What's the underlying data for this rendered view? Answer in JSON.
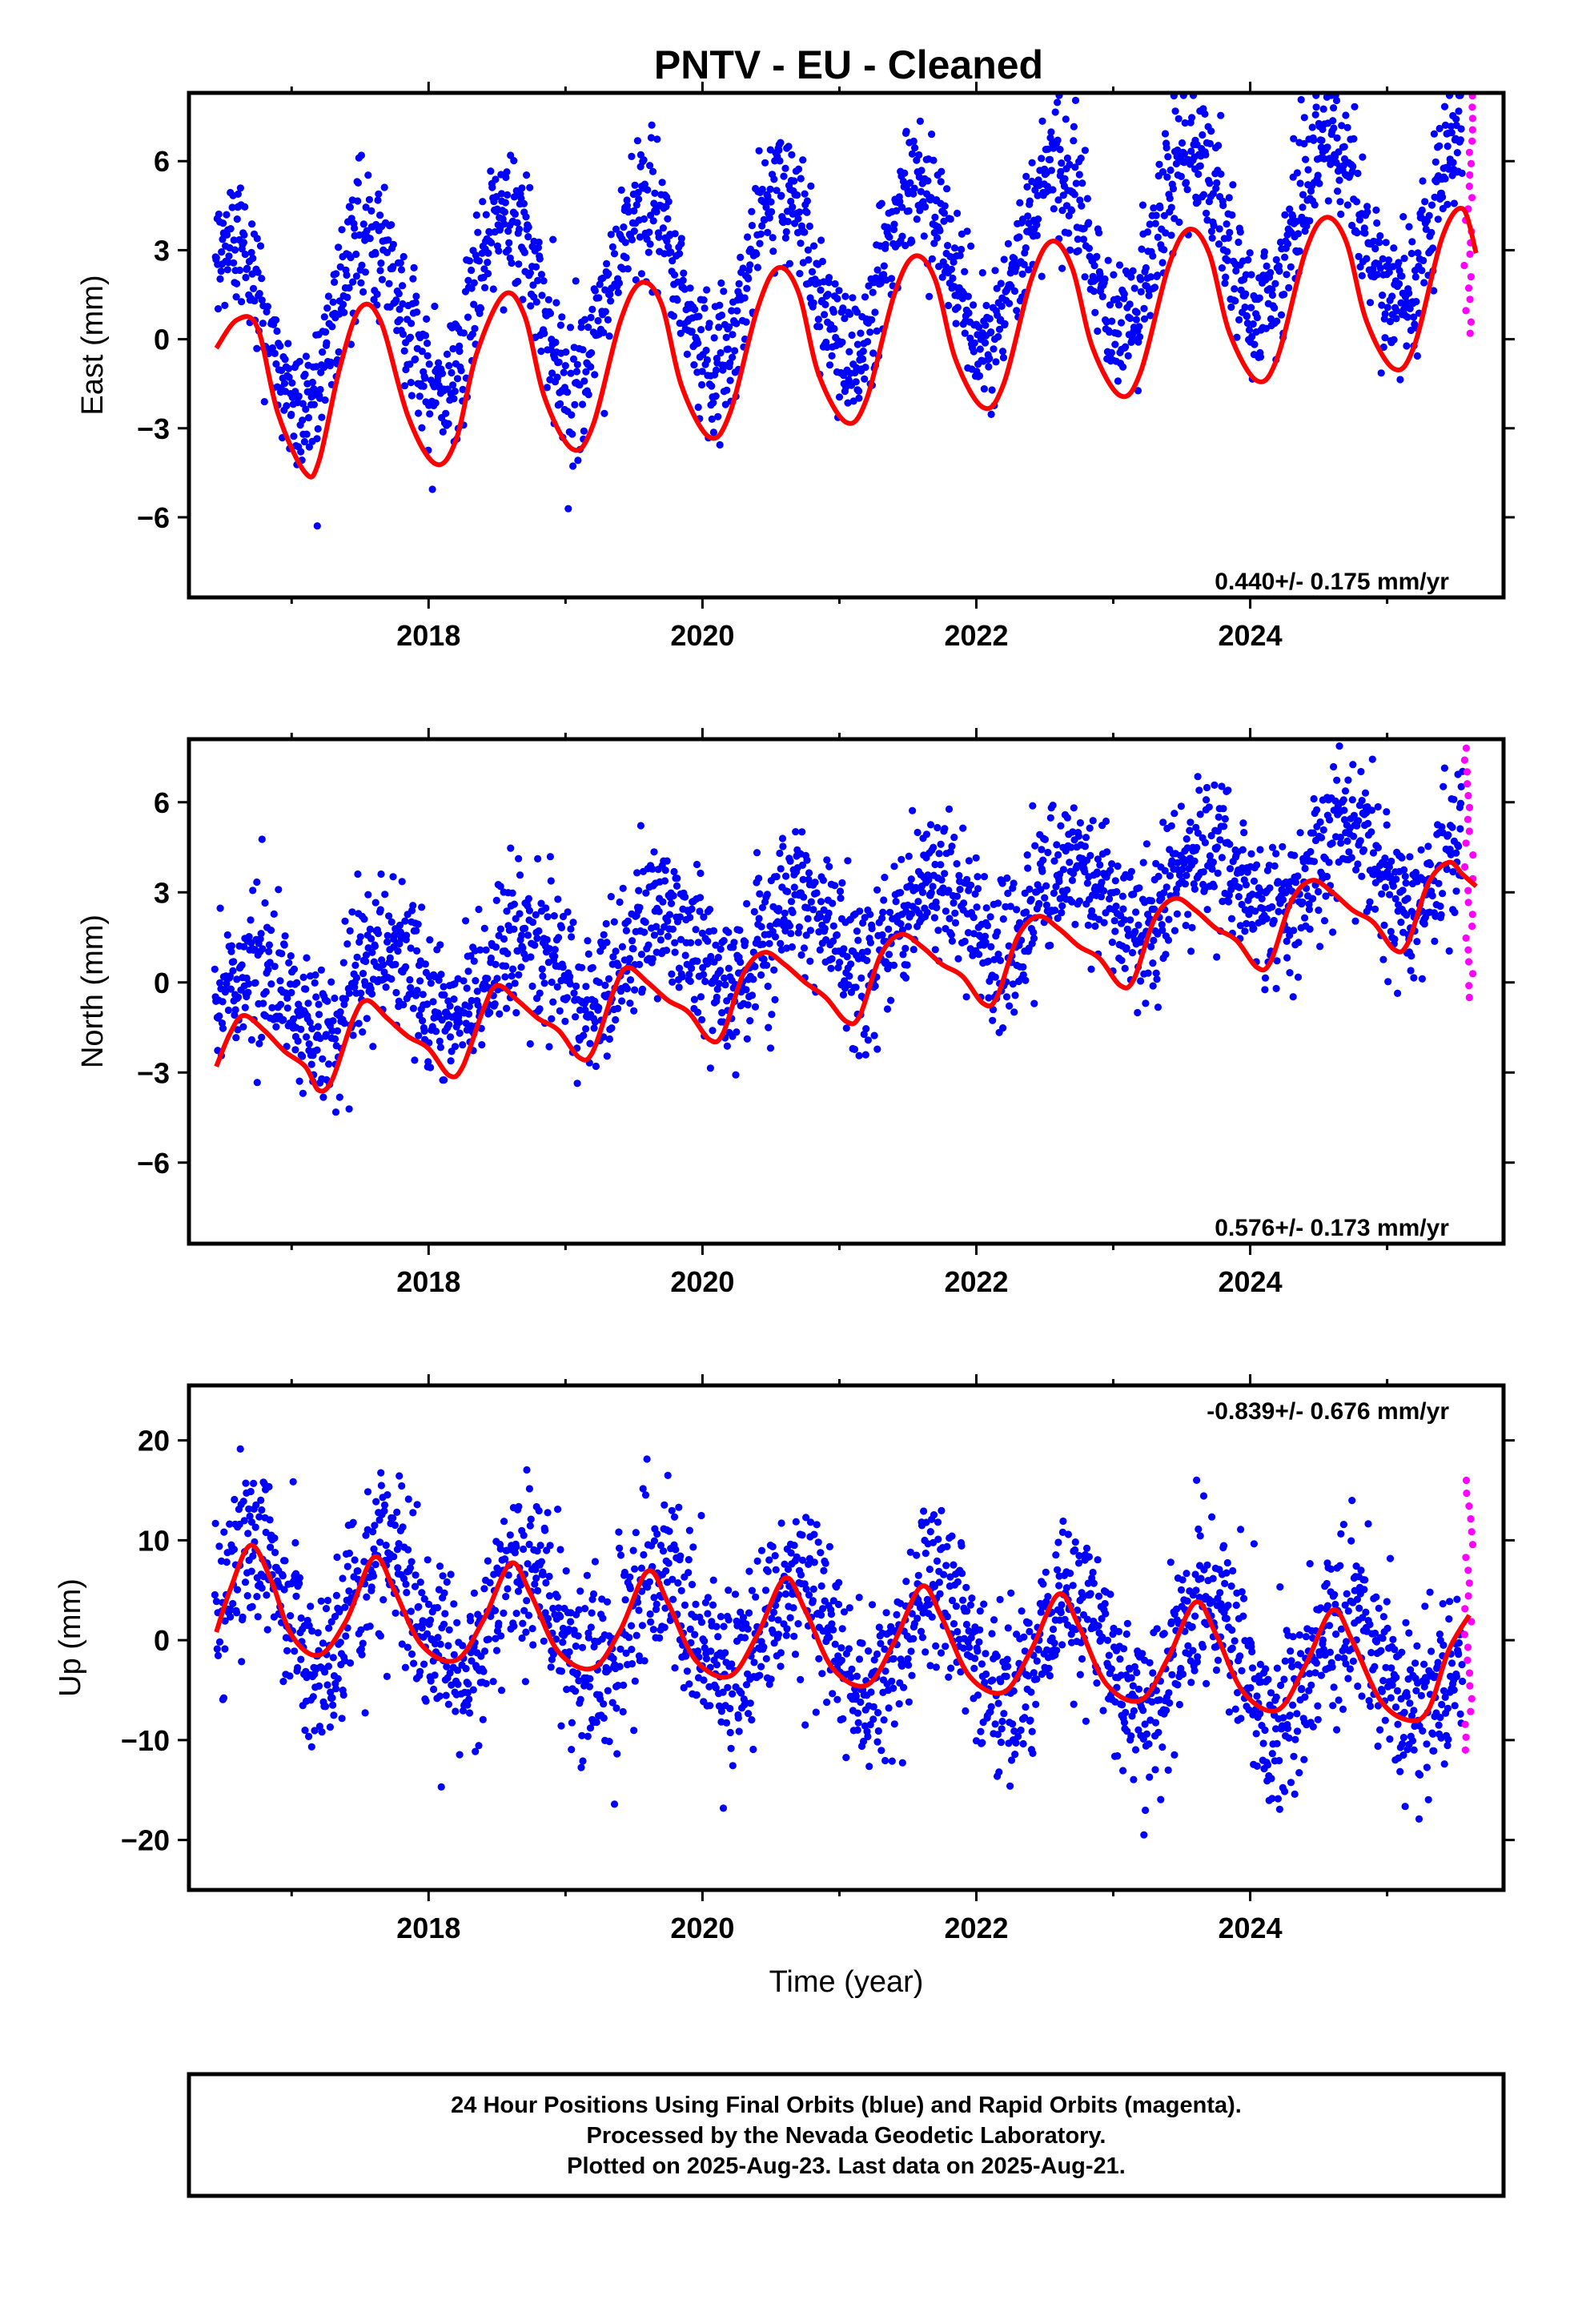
{
  "title": "PNTV  - EU - Cleaned",
  "x_axis_label": "Time (year)",
  "footer": {
    "line1": "24 Hour Positions Using Final Orbits (blue) and Rapid Orbits (magenta).",
    "line2": "Processed by the Nevada Geodetic Laboratory.",
    "line3": "Plotted on 2025-Aug-23. Last data on 2025-Aug-21."
  },
  "colors": {
    "final_orbits": "#0000ff",
    "rapid_orbits": "#ff00ff",
    "model_fit": "#ff0000",
    "frame": "#000000"
  },
  "chart_data": [
    {
      "type": "scatter",
      "component": "east",
      "ylabel": "East (mm)",
      "xlim": [
        2016.25,
        2025.85
      ],
      "ylim": [
        -8.7,
        8.3
      ],
      "x_ticks": [
        2018,
        2020,
        2022,
        2024
      ],
      "x_tick_labels": [
        "2018",
        "2020",
        "2022",
        "2024"
      ],
      "y_ticks": [
        -6,
        -3,
        0,
        3,
        6
      ],
      "y_tick_labels": [
        "−6",
        "−3",
        "0",
        "3",
        "6"
      ],
      "rate_label": "0.440+/- 0.175 mm/yr",
      "rate_label_position": "bottom-right",
      "series": [
        {
          "name": "Final Orbits",
          "color": "#0000ff",
          "kind": "points",
          "x_range": [
            2016.44,
            2025.55
          ],
          "trend_mm_per_yr": 0.44,
          "trend_intercept": 0.35,
          "annual_amplitude": 2.9,
          "annual_phase": 0.32,
          "scatter_sd": 1.15
        },
        {
          "name": "Rapid Orbits",
          "color": "#ff00ff",
          "kind": "points",
          "x_range": [
            2025.56,
            2025.63
          ],
          "y_range": [
            0.2,
            8.2
          ]
        },
        {
          "name": "Model fit",
          "color": "#ff0000",
          "kind": "line",
          "points": [
            [
              2016.45,
              -0.3
            ],
            [
              2016.6,
              0.65
            ],
            [
              2016.75,
              0.4
            ],
            [
              2016.9,
              -2.5
            ],
            [
              2017.1,
              -4.5
            ],
            [
              2017.2,
              -4.1
            ],
            [
              2017.35,
              -1.0
            ],
            [
              2017.5,
              1.05
            ],
            [
              2017.65,
              0.6
            ],
            [
              2017.85,
              -2.6
            ],
            [
              2018.05,
              -4.2
            ],
            [
              2018.2,
              -3.4
            ],
            [
              2018.35,
              -0.5
            ],
            [
              2018.55,
              1.5
            ],
            [
              2018.7,
              0.8
            ],
            [
              2018.85,
              -2.0
            ],
            [
              2019.05,
              -3.7
            ],
            [
              2019.2,
              -2.9
            ],
            [
              2019.4,
              0.6
            ],
            [
              2019.55,
              1.9
            ],
            [
              2019.7,
              1.2
            ],
            [
              2019.85,
              -1.6
            ],
            [
              2020.05,
              -3.3
            ],
            [
              2020.2,
              -2.5
            ],
            [
              2020.4,
              1.0
            ],
            [
              2020.55,
              2.4
            ],
            [
              2020.7,
              1.6
            ],
            [
              2020.85,
              -1.2
            ],
            [
              2021.05,
              -2.8
            ],
            [
              2021.2,
              -2.0
            ],
            [
              2021.4,
              1.5
            ],
            [
              2021.55,
              2.8
            ],
            [
              2021.7,
              2.0
            ],
            [
              2021.85,
              -0.7
            ],
            [
              2022.05,
              -2.3
            ],
            [
              2022.2,
              -1.5
            ],
            [
              2022.4,
              2.0
            ],
            [
              2022.55,
              3.3
            ],
            [
              2022.7,
              2.4
            ],
            [
              2022.85,
              -0.3
            ],
            [
              2023.05,
              -1.9
            ],
            [
              2023.2,
              -1.1
            ],
            [
              2023.4,
              2.4
            ],
            [
              2023.55,
              3.7
            ],
            [
              2023.7,
              2.9
            ],
            [
              2023.85,
              0.2
            ],
            [
              2024.05,
              -1.4
            ],
            [
              2024.2,
              -0.6
            ],
            [
              2024.4,
              2.9
            ],
            [
              2024.55,
              4.1
            ],
            [
              2024.7,
              3.3
            ],
            [
              2024.85,
              0.6
            ],
            [
              2025.05,
              -1.0
            ],
            [
              2025.2,
              -0.2
            ],
            [
              2025.4,
              3.4
            ],
            [
              2025.55,
              4.4
            ],
            [
              2025.65,
              2.9
            ]
          ]
        }
      ]
    },
    {
      "type": "scatter",
      "component": "north",
      "ylabel": "North (mm)",
      "xlim": [
        2016.25,
        2025.85
      ],
      "ylim": [
        -8.7,
        8.1
      ],
      "x_ticks": [
        2018,
        2020,
        2022,
        2024
      ],
      "x_tick_labels": [
        "2018",
        "2020",
        "2022",
        "2024"
      ],
      "y_ticks": [
        -6,
        -3,
        0,
        3,
        6
      ],
      "y_tick_labels": [
        "−6",
        "−3",
        "0",
        "3",
        "6"
      ],
      "rate_label": "0.576+/- 0.173 mm/yr",
      "rate_label_position": "bottom-right",
      "series": [
        {
          "name": "Final Orbits",
          "color": "#0000ff",
          "kind": "points",
          "x_range": [
            2016.44,
            2025.55
          ],
          "trend_mm_per_yr": 0.576,
          "trend_intercept": -0.9,
          "annual_amplitude": 1.3,
          "annual_phase": 0.45,
          "scatter_sd": 1.2
        },
        {
          "name": "Rapid Orbits",
          "color": "#ff00ff",
          "kind": "points",
          "x_range": [
            2025.56,
            2025.63
          ],
          "y_range": [
            -0.5,
            7.8
          ]
        },
        {
          "name": "Model fit",
          "color": "#ff0000",
          "kind": "line",
          "points": [
            [
              2016.45,
              -2.8
            ],
            [
              2016.55,
              -1.7
            ],
            [
              2016.65,
              -1.1
            ],
            [
              2016.8,
              -1.6
            ],
            [
              2016.95,
              -2.3
            ],
            [
              2017.1,
              -2.8
            ],
            [
              2017.2,
              -3.6
            ],
            [
              2017.3,
              -3.2
            ],
            [
              2017.45,
              -1.2
            ],
            [
              2017.55,
              -0.6
            ],
            [
              2017.7,
              -1.2
            ],
            [
              2017.85,
              -1.8
            ],
            [
              2018.0,
              -2.2
            ],
            [
              2018.15,
              -3.1
            ],
            [
              2018.25,
              -2.8
            ],
            [
              2018.4,
              -0.9
            ],
            [
              2018.5,
              -0.1
            ],
            [
              2018.65,
              -0.6
            ],
            [
              2018.8,
              -1.2
            ],
            [
              2018.95,
              -1.6
            ],
            [
              2019.1,
              -2.5
            ],
            [
              2019.2,
              -2.3
            ],
            [
              2019.35,
              -0.3
            ],
            [
              2019.45,
              0.5
            ],
            [
              2019.6,
              0.0
            ],
            [
              2019.75,
              -0.6
            ],
            [
              2019.9,
              -1.0
            ],
            [
              2020.05,
              -1.9
            ],
            [
              2020.15,
              -1.7
            ],
            [
              2020.3,
              0.3
            ],
            [
              2020.45,
              1.0
            ],
            [
              2020.6,
              0.6
            ],
            [
              2020.75,
              0.0
            ],
            [
              2020.9,
              -0.5
            ],
            [
              2021.05,
              -1.3
            ],
            [
              2021.15,
              -1.1
            ],
            [
              2021.3,
              0.9
            ],
            [
              2021.45,
              1.6
            ],
            [
              2021.6,
              1.2
            ],
            [
              2021.75,
              0.6
            ],
            [
              2021.9,
              0.2
            ],
            [
              2022.05,
              -0.7
            ],
            [
              2022.15,
              -0.5
            ],
            [
              2022.3,
              1.5
            ],
            [
              2022.45,
              2.2
            ],
            [
              2022.6,
              1.8
            ],
            [
              2022.75,
              1.2
            ],
            [
              2022.9,
              0.8
            ],
            [
              2023.05,
              -0.1
            ],
            [
              2023.15,
              0.1
            ],
            [
              2023.3,
              2.1
            ],
            [
              2023.45,
              2.8
            ],
            [
              2023.6,
              2.4
            ],
            [
              2023.75,
              1.8
            ],
            [
              2023.9,
              1.4
            ],
            [
              2024.05,
              0.5
            ],
            [
              2024.15,
              0.7
            ],
            [
              2024.3,
              2.7
            ],
            [
              2024.45,
              3.4
            ],
            [
              2024.6,
              3.0
            ],
            [
              2024.75,
              2.4
            ],
            [
              2024.9,
              2.0
            ],
            [
              2025.05,
              1.1
            ],
            [
              2025.15,
              1.3
            ],
            [
              2025.3,
              3.3
            ],
            [
              2025.45,
              4.0
            ],
            [
              2025.55,
              3.6
            ],
            [
              2025.65,
              3.2
            ]
          ]
        }
      ]
    },
    {
      "type": "scatter",
      "component": "up",
      "ylabel": "Up (mm)",
      "xlim": [
        2016.25,
        2025.85
      ],
      "ylim": [
        -25,
        25.5
      ],
      "x_ticks": [
        2018,
        2020,
        2022,
        2024
      ],
      "x_tick_labels": [
        "2018",
        "2020",
        "2022",
        "2024"
      ],
      "y_ticks": [
        -20,
        -10,
        0,
        10,
        20
      ],
      "y_tick_labels": [
        "−20",
        "−10",
        "0",
        "10",
        "20"
      ],
      "rate_label": "-0.839+/- 0.676 mm/yr",
      "rate_label_position": "top-right",
      "series": [
        {
          "name": "Final Orbits",
          "color": "#0000ff",
          "kind": "points",
          "x_range": [
            2016.44,
            2025.55
          ],
          "trend_mm_per_yr": -0.839,
          "trend_intercept": 4.2,
          "annual_amplitude": 5.5,
          "annual_phase": 0.46,
          "scatter_sd": 4.2
        },
        {
          "name": "Rapid Orbits",
          "color": "#ff00ff",
          "kind": "points",
          "x_range": [
            2025.56,
            2025.63
          ],
          "y_range": [
            -11,
            16
          ]
        },
        {
          "name": "Model fit",
          "color": "#ff0000",
          "kind": "line",
          "points": [
            [
              2016.45,
              0.8
            ],
            [
              2016.55,
              5.0
            ],
            [
              2016.7,
              9.5
            ],
            [
              2016.85,
              6.0
            ],
            [
              2017.0,
              0.5
            ],
            [
              2017.2,
              -1.5
            ],
            [
              2017.4,
              2.0
            ],
            [
              2017.6,
              8.3
            ],
            [
              2017.75,
              5.0
            ],
            [
              2017.95,
              -0.5
            ],
            [
              2018.2,
              -2.0
            ],
            [
              2018.4,
              2.0
            ],
            [
              2018.6,
              7.7
            ],
            [
              2018.75,
              4.5
            ],
            [
              2018.95,
              -1.2
            ],
            [
              2019.2,
              -2.8
            ],
            [
              2019.4,
              1.0
            ],
            [
              2019.6,
              6.9
            ],
            [
              2019.75,
              3.7
            ],
            [
              2019.95,
              -2.0
            ],
            [
              2020.2,
              -3.6
            ],
            [
              2020.4,
              0.5
            ],
            [
              2020.6,
              6.2
            ],
            [
              2020.75,
              3.0
            ],
            [
              2020.95,
              -2.8
            ],
            [
              2021.2,
              -4.5
            ],
            [
              2021.4,
              -0.2
            ],
            [
              2021.6,
              5.4
            ],
            [
              2021.75,
              2.2
            ],
            [
              2021.95,
              -3.6
            ],
            [
              2022.2,
              -5.2
            ],
            [
              2022.4,
              -1.0
            ],
            [
              2022.6,
              4.6
            ],
            [
              2022.75,
              1.4
            ],
            [
              2022.95,
              -4.4
            ],
            [
              2023.2,
              -6.0
            ],
            [
              2023.4,
              -1.8
            ],
            [
              2023.6,
              3.8
            ],
            [
              2023.75,
              0.6
            ],
            [
              2023.95,
              -5.2
            ],
            [
              2024.2,
              -7.0
            ],
            [
              2024.4,
              -2.6
            ],
            [
              2024.6,
              3.0
            ],
            [
              2024.75,
              -0.2
            ],
            [
              2024.95,
              -6.0
            ],
            [
              2025.15,
              -8.0
            ],
            [
              2025.3,
              -7.0
            ],
            [
              2025.45,
              -1.0
            ],
            [
              2025.6,
              2.5
            ]
          ]
        }
      ]
    }
  ]
}
